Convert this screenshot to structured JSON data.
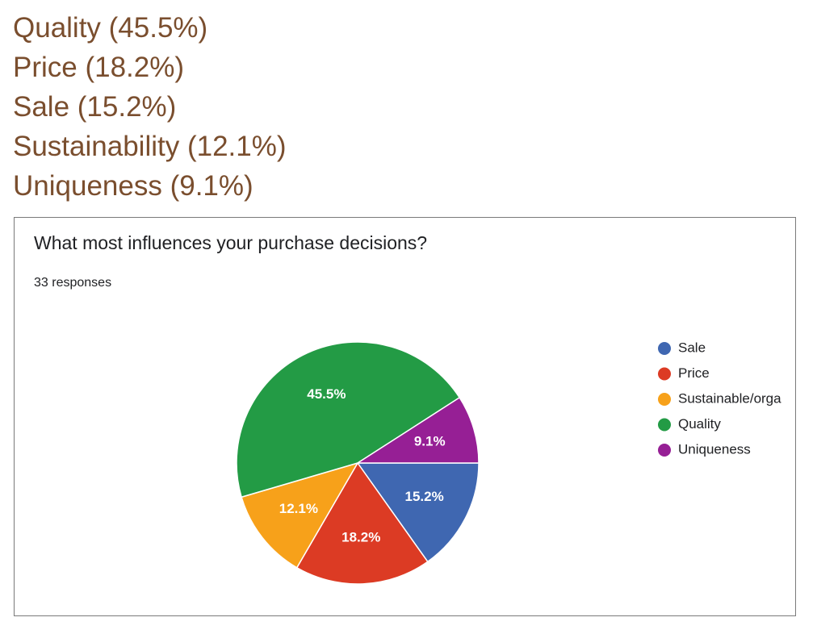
{
  "summary": {
    "items": [
      "Quality (45.5%)",
      "Price (18.2%)",
      "Sale (15.2%)",
      "Sustainability (12.1%)",
      "Uniqueness (9.1%)"
    ]
  },
  "card": {
    "title": "What most influences your purchase decisions?",
    "subtitle": "33 responses"
  },
  "chart_data": {
    "type": "pie",
    "title": "What most influences your purchase decisions?",
    "subtitle": "33 responses",
    "legend_position": "right",
    "slices": [
      {
        "name": "Sale",
        "value": 15.2,
        "label": "15.2%",
        "color": "#3f67b1"
      },
      {
        "name": "Price",
        "value": 18.2,
        "label": "18.2%",
        "color": "#dc3b24"
      },
      {
        "name": "Sustainable/orga",
        "value": 12.1,
        "label": "12.1%",
        "color": "#f7a11a"
      },
      {
        "name": "Quality",
        "value": 45.5,
        "label": "45.5%",
        "color": "#239b45"
      },
      {
        "name": "Uniqueness",
        "value": 9.1,
        "label": "9.1%",
        "color": "#961f95"
      }
    ]
  }
}
